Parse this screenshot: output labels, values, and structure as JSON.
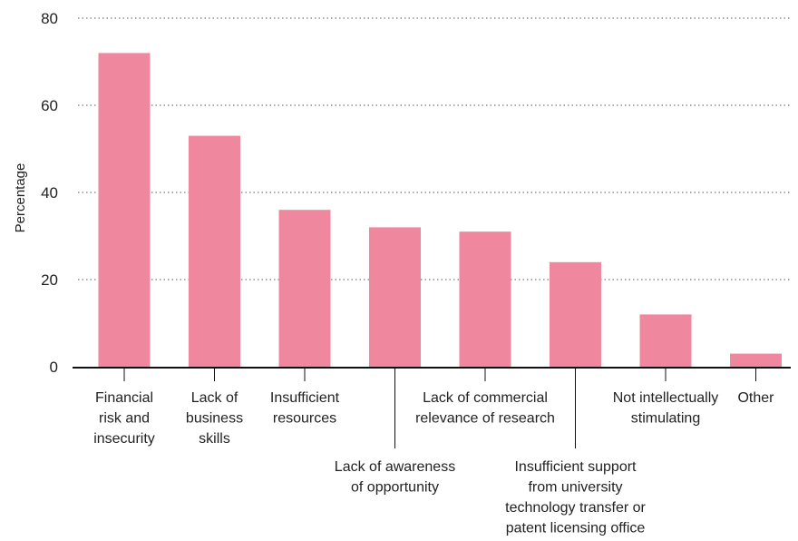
{
  "chart_data": {
    "type": "bar",
    "title": "",
    "xlabel": "",
    "ylabel": "Percentage",
    "ylim": [
      0,
      80
    ],
    "yticks": [
      0,
      20,
      40,
      60,
      80
    ],
    "grid": "horizontal dotted",
    "bar_color": "#EF879E",
    "categories": [
      "Financial risk and insecurity",
      "Lack of business skills",
      "Insufficient resources",
      "Lack of awareness of opportunity",
      "Lack of commercial relevance of research",
      "Insufficient support from university technology transfer or patent licensing office",
      "Not intellectually stimulating",
      "Other"
    ],
    "category_label_lines": [
      [
        "Financial",
        "risk and",
        "insecurity"
      ],
      [
        "Lack of",
        "business",
        "skills"
      ],
      [
        "Insufficient",
        "resources"
      ],
      [
        "Lack of awareness",
        "of opportunity"
      ],
      [
        "Lack of commercial",
        "relevance of research"
      ],
      [
        "Insufficient support",
        "from university",
        "technology transfer or",
        "patent licensing office"
      ],
      [
        "Not intellectually",
        "stimulating"
      ],
      [
        "Other"
      ]
    ],
    "category_label_placement": [
      "short",
      "short",
      "short",
      "long",
      "short",
      "long",
      "short",
      "short"
    ],
    "values": [
      72,
      53,
      36,
      32,
      31,
      24,
      12,
      3
    ]
  }
}
